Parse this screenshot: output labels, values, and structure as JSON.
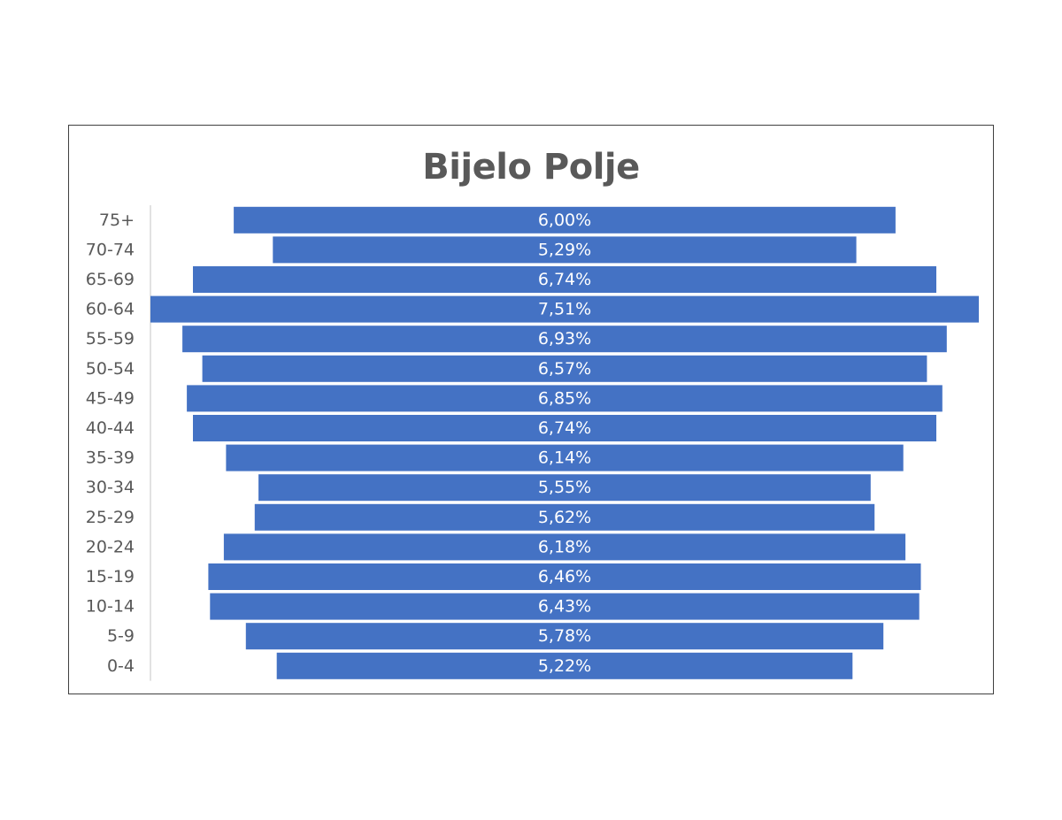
{
  "chart_data": {
    "type": "bar",
    "orientation": "horizontal",
    "title": "Bijelo Polje",
    "categories": [
      "75+",
      "70-74",
      "65-69",
      "60-64",
      "55-59",
      "50-54",
      "45-49",
      "40-44",
      "35-39",
      "30-34",
      "25-29",
      "20-24",
      "15-19",
      "10-14",
      "5-9",
      "0-4"
    ],
    "values": [
      6.0,
      5.29,
      6.74,
      7.51,
      6.93,
      6.57,
      6.85,
      6.74,
      6.14,
      5.55,
      5.62,
      6.18,
      6.46,
      6.43,
      5.78,
      5.22
    ],
    "data_labels": [
      "6,00%",
      "5,29%",
      "6,74%",
      "7,51%",
      "6,93%",
      "6,57%",
      "6,85%",
      "6,74%",
      "6,14%",
      "5,55%",
      "5,62%",
      "6,18%",
      "6,46%",
      "6,43%",
      "5,78%",
      "5,22%"
    ],
    "bar_alignment": "centered",
    "xlim": [
      0,
      7.51
    ],
    "grid": false,
    "legend": "none",
    "colors": {
      "bar": "#4472c4",
      "text": "#595959",
      "data_label": "#ffffff",
      "axis": "#d9d9d9",
      "border": "#404040"
    }
  }
}
